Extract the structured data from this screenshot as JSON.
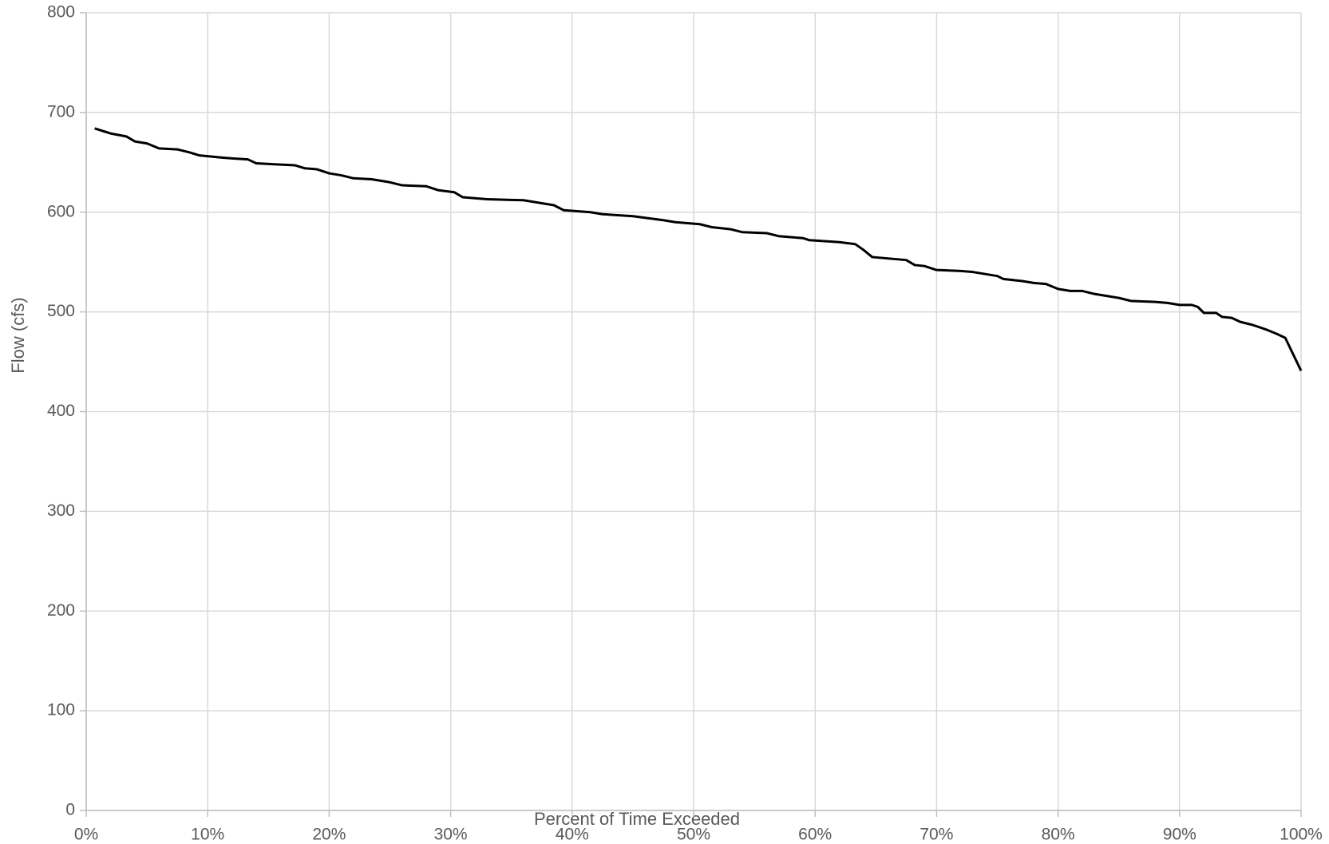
{
  "chart_data": {
    "type": "line",
    "x_label": "Percent of Time Exceeded",
    "y_label": "Flow (cfs)",
    "x": [
      0.7,
      2,
      3.3,
      4,
      5,
      6,
      7.5,
      8.5,
      9.3,
      11,
      12,
      13.3,
      14,
      15.5,
      17.2,
      18,
      19,
      20,
      21,
      22,
      23.5,
      25,
      26,
      28,
      29,
      30.3,
      31,
      33,
      36,
      38.5,
      39.3,
      41.5,
      42.5,
      45,
      47.5,
      48.5,
      50.5,
      51.5,
      53,
      54,
      56,
      57,
      59,
      59.5,
      62,
      63.3,
      64,
      64.7,
      67.5,
      68.2,
      69,
      70,
      72,
      73,
      74,
      75,
      75.5,
      77,
      78,
      79,
      80,
      81,
      82,
      83,
      84,
      85,
      86,
      88,
      89,
      90,
      91,
      91.5,
      92,
      93,
      93.5,
      94.3,
      95,
      96,
      97.2,
      98,
      98.7,
      100
    ],
    "series": [
      {
        "name": "Flow",
        "color": "#000000",
        "values": [
          684,
          679,
          676,
          671,
          669,
          664,
          663,
          660,
          657,
          655,
          654,
          653,
          649,
          648,
          647,
          644,
          643,
          639,
          637,
          634,
          633,
          630,
          627,
          626,
          622,
          620,
          615,
          613,
          612,
          607,
          602,
          600,
          598,
          596,
          592,
          590,
          588,
          585,
          583,
          580,
          579,
          576,
          574,
          572,
          570,
          568,
          562,
          555,
          552,
          547,
          546,
          542,
          541,
          540,
          538,
          536,
          533,
          531,
          529,
          528,
          523,
          521,
          521,
          518,
          516,
          514,
          511,
          510,
          509,
          507,
          507,
          505,
          499,
          499,
          495,
          494,
          490,
          487,
          482,
          478,
          474,
          441
        ]
      }
    ],
    "xlim": [
      0,
      100
    ],
    "xticks": [
      {
        "value": 0,
        "label": "0%"
      },
      {
        "value": 10,
        "label": "10%"
      },
      {
        "value": 20,
        "label": "20%"
      },
      {
        "value": 30,
        "label": "30%"
      },
      {
        "value": 40,
        "label": "40%"
      },
      {
        "value": 50,
        "label": "50%"
      },
      {
        "value": 60,
        "label": "60%"
      },
      {
        "value": 70,
        "label": "70%"
      },
      {
        "value": 80,
        "label": "80%"
      },
      {
        "value": 90,
        "label": "90%"
      },
      {
        "value": 100,
        "label": "100%"
      }
    ],
    "ylim": [
      0,
      800
    ],
    "yticks": [
      0,
      100,
      200,
      300,
      400,
      500,
      600,
      700,
      800
    ],
    "grid": true
  }
}
